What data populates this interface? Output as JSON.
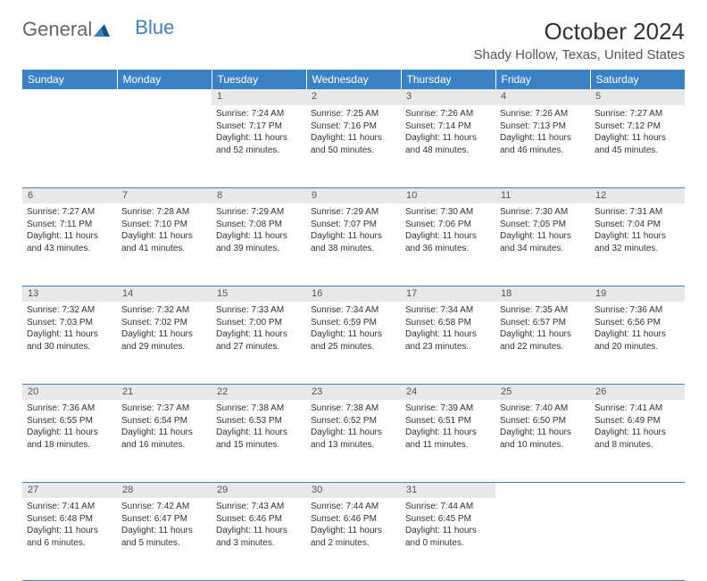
{
  "logo": {
    "word1": "General",
    "word2": "Blue"
  },
  "title": "October 2024",
  "location": "Shady Hollow, Texas, United States",
  "colors": {
    "header_bg": "#3b82c4",
    "header_text": "#ffffff",
    "daynum_bg": "#e8e8e8",
    "border": "#3b82c4",
    "logo_blue": "#3b82c4",
    "logo_gray": "#666666"
  },
  "dayNames": [
    "Sunday",
    "Monday",
    "Tuesday",
    "Wednesday",
    "Thursday",
    "Friday",
    "Saturday"
  ],
  "weeks": [
    {
      "days": [
        {
          "num": "",
          "sunrise": "",
          "sunset": "",
          "daylight1": "",
          "daylight2": ""
        },
        {
          "num": "",
          "sunrise": "",
          "sunset": "",
          "daylight1": "",
          "daylight2": ""
        },
        {
          "num": "1",
          "sunrise": "Sunrise: 7:24 AM",
          "sunset": "Sunset: 7:17 PM",
          "daylight1": "Daylight: 11 hours",
          "daylight2": "and 52 minutes."
        },
        {
          "num": "2",
          "sunrise": "Sunrise: 7:25 AM",
          "sunset": "Sunset: 7:16 PM",
          "daylight1": "Daylight: 11 hours",
          "daylight2": "and 50 minutes."
        },
        {
          "num": "3",
          "sunrise": "Sunrise: 7:26 AM",
          "sunset": "Sunset: 7:14 PM",
          "daylight1": "Daylight: 11 hours",
          "daylight2": "and 48 minutes."
        },
        {
          "num": "4",
          "sunrise": "Sunrise: 7:26 AM",
          "sunset": "Sunset: 7:13 PM",
          "daylight1": "Daylight: 11 hours",
          "daylight2": "and 46 minutes."
        },
        {
          "num": "5",
          "sunrise": "Sunrise: 7:27 AM",
          "sunset": "Sunset: 7:12 PM",
          "daylight1": "Daylight: 11 hours",
          "daylight2": "and 45 minutes."
        }
      ]
    },
    {
      "days": [
        {
          "num": "6",
          "sunrise": "Sunrise: 7:27 AM",
          "sunset": "Sunset: 7:11 PM",
          "daylight1": "Daylight: 11 hours",
          "daylight2": "and 43 minutes."
        },
        {
          "num": "7",
          "sunrise": "Sunrise: 7:28 AM",
          "sunset": "Sunset: 7:10 PM",
          "daylight1": "Daylight: 11 hours",
          "daylight2": "and 41 minutes."
        },
        {
          "num": "8",
          "sunrise": "Sunrise: 7:29 AM",
          "sunset": "Sunset: 7:08 PM",
          "daylight1": "Daylight: 11 hours",
          "daylight2": "and 39 minutes."
        },
        {
          "num": "9",
          "sunrise": "Sunrise: 7:29 AM",
          "sunset": "Sunset: 7:07 PM",
          "daylight1": "Daylight: 11 hours",
          "daylight2": "and 38 minutes."
        },
        {
          "num": "10",
          "sunrise": "Sunrise: 7:30 AM",
          "sunset": "Sunset: 7:06 PM",
          "daylight1": "Daylight: 11 hours",
          "daylight2": "and 36 minutes."
        },
        {
          "num": "11",
          "sunrise": "Sunrise: 7:30 AM",
          "sunset": "Sunset: 7:05 PM",
          "daylight1": "Daylight: 11 hours",
          "daylight2": "and 34 minutes."
        },
        {
          "num": "12",
          "sunrise": "Sunrise: 7:31 AM",
          "sunset": "Sunset: 7:04 PM",
          "daylight1": "Daylight: 11 hours",
          "daylight2": "and 32 minutes."
        }
      ]
    },
    {
      "days": [
        {
          "num": "13",
          "sunrise": "Sunrise: 7:32 AM",
          "sunset": "Sunset: 7:03 PM",
          "daylight1": "Daylight: 11 hours",
          "daylight2": "and 30 minutes."
        },
        {
          "num": "14",
          "sunrise": "Sunrise: 7:32 AM",
          "sunset": "Sunset: 7:02 PM",
          "daylight1": "Daylight: 11 hours",
          "daylight2": "and 29 minutes."
        },
        {
          "num": "15",
          "sunrise": "Sunrise: 7:33 AM",
          "sunset": "Sunset: 7:00 PM",
          "daylight1": "Daylight: 11 hours",
          "daylight2": "and 27 minutes."
        },
        {
          "num": "16",
          "sunrise": "Sunrise: 7:34 AM",
          "sunset": "Sunset: 6:59 PM",
          "daylight1": "Daylight: 11 hours",
          "daylight2": "and 25 minutes."
        },
        {
          "num": "17",
          "sunrise": "Sunrise: 7:34 AM",
          "sunset": "Sunset: 6:58 PM",
          "daylight1": "Daylight: 11 hours",
          "daylight2": "and 23 minutes."
        },
        {
          "num": "18",
          "sunrise": "Sunrise: 7:35 AM",
          "sunset": "Sunset: 6:57 PM",
          "daylight1": "Daylight: 11 hours",
          "daylight2": "and 22 minutes."
        },
        {
          "num": "19",
          "sunrise": "Sunrise: 7:36 AM",
          "sunset": "Sunset: 6:56 PM",
          "daylight1": "Daylight: 11 hours",
          "daylight2": "and 20 minutes."
        }
      ]
    },
    {
      "days": [
        {
          "num": "20",
          "sunrise": "Sunrise: 7:36 AM",
          "sunset": "Sunset: 6:55 PM",
          "daylight1": "Daylight: 11 hours",
          "daylight2": "and 18 minutes."
        },
        {
          "num": "21",
          "sunrise": "Sunrise: 7:37 AM",
          "sunset": "Sunset: 6:54 PM",
          "daylight1": "Daylight: 11 hours",
          "daylight2": "and 16 minutes."
        },
        {
          "num": "22",
          "sunrise": "Sunrise: 7:38 AM",
          "sunset": "Sunset: 6:53 PM",
          "daylight1": "Daylight: 11 hours",
          "daylight2": "and 15 minutes."
        },
        {
          "num": "23",
          "sunrise": "Sunrise: 7:38 AM",
          "sunset": "Sunset: 6:52 PM",
          "daylight1": "Daylight: 11 hours",
          "daylight2": "and 13 minutes."
        },
        {
          "num": "24",
          "sunrise": "Sunrise: 7:39 AM",
          "sunset": "Sunset: 6:51 PM",
          "daylight1": "Daylight: 11 hours",
          "daylight2": "and 11 minutes."
        },
        {
          "num": "25",
          "sunrise": "Sunrise: 7:40 AM",
          "sunset": "Sunset: 6:50 PM",
          "daylight1": "Daylight: 11 hours",
          "daylight2": "and 10 minutes."
        },
        {
          "num": "26",
          "sunrise": "Sunrise: 7:41 AM",
          "sunset": "Sunset: 6:49 PM",
          "daylight1": "Daylight: 11 hours",
          "daylight2": "and 8 minutes."
        }
      ]
    },
    {
      "days": [
        {
          "num": "27",
          "sunrise": "Sunrise: 7:41 AM",
          "sunset": "Sunset: 6:48 PM",
          "daylight1": "Daylight: 11 hours",
          "daylight2": "and 6 minutes."
        },
        {
          "num": "28",
          "sunrise": "Sunrise: 7:42 AM",
          "sunset": "Sunset: 6:47 PM",
          "daylight1": "Daylight: 11 hours",
          "daylight2": "and 5 minutes."
        },
        {
          "num": "29",
          "sunrise": "Sunrise: 7:43 AM",
          "sunset": "Sunset: 6:46 PM",
          "daylight1": "Daylight: 11 hours",
          "daylight2": "and 3 minutes."
        },
        {
          "num": "30",
          "sunrise": "Sunrise: 7:44 AM",
          "sunset": "Sunset: 6:46 PM",
          "daylight1": "Daylight: 11 hours",
          "daylight2": "and 2 minutes."
        },
        {
          "num": "31",
          "sunrise": "Sunrise: 7:44 AM",
          "sunset": "Sunset: 6:45 PM",
          "daylight1": "Daylight: 11 hours",
          "daylight2": "and 0 minutes."
        },
        {
          "num": "",
          "sunrise": "",
          "sunset": "",
          "daylight1": "",
          "daylight2": ""
        },
        {
          "num": "",
          "sunrise": "",
          "sunset": "",
          "daylight1": "",
          "daylight2": ""
        }
      ]
    }
  ]
}
